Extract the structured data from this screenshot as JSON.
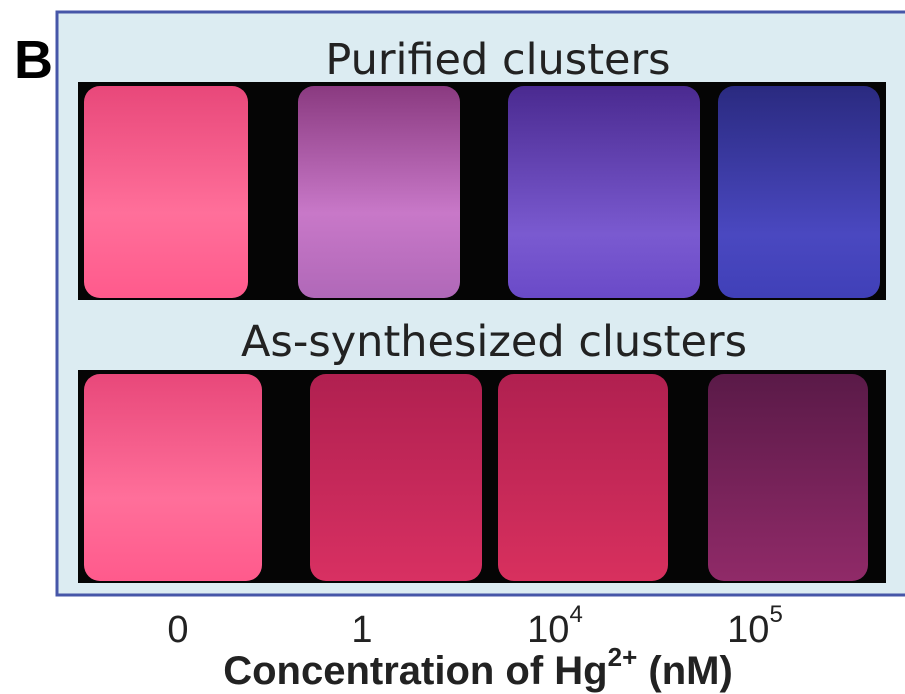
{
  "panel_label": "B",
  "rows": [
    {
      "title": "Purified clusters"
    },
    {
      "title": "As-synthesized clusters"
    }
  ],
  "concentrations": [
    {
      "base": "0"
    },
    {
      "base": "1"
    },
    {
      "base": "10",
      "exponent": "4"
    },
    {
      "base": "10",
      "exponent": "5"
    }
  ],
  "axis_title": {
    "text": "Concentration of Hg",
    "superscript": "2+",
    "unit": " (nM)"
  }
}
